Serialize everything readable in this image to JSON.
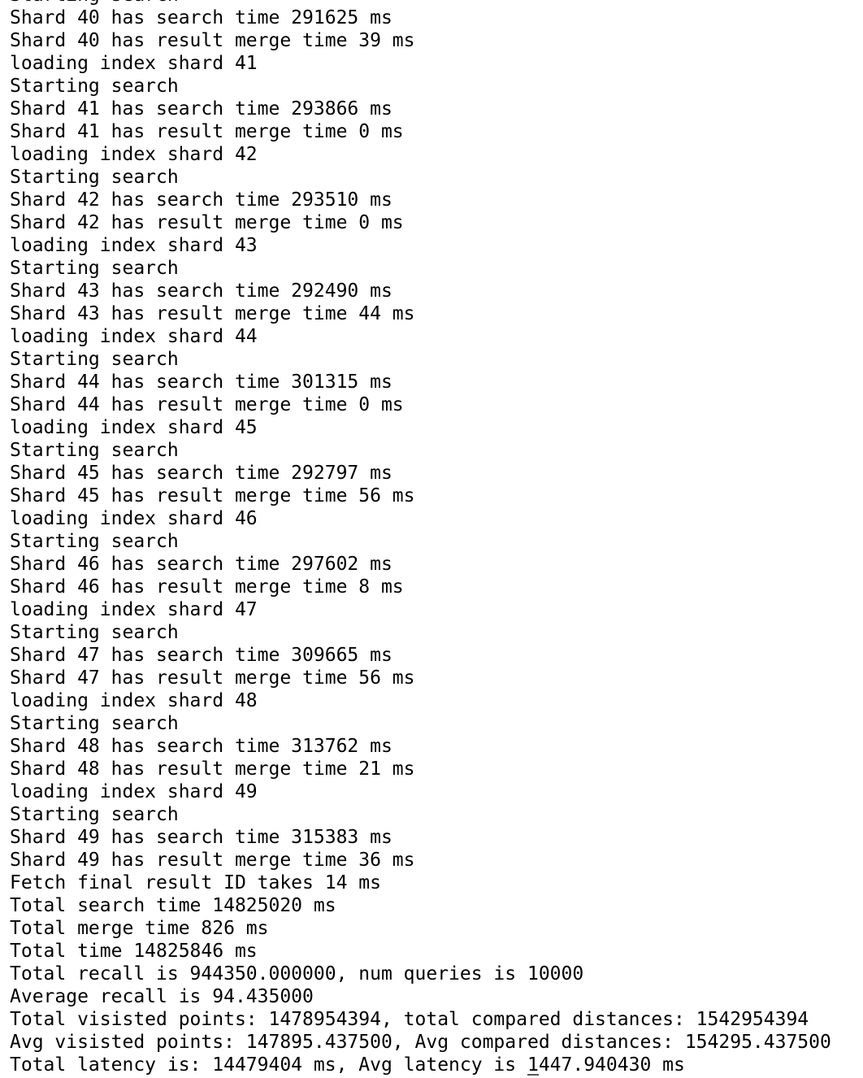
{
  "lines": [
    "Starting search",
    "Shard 40 has search time 291625 ms",
    "Shard 40 has result merge time 39 ms",
    "loading index shard 41",
    "Starting search",
    "Shard 41 has search time 293866 ms",
    "Shard 41 has result merge time 0 ms",
    "loading index shard 42",
    "Starting search",
    "Shard 42 has search time 293510 ms",
    "Shard 42 has result merge time 0 ms",
    "loading index shard 43",
    "Starting search",
    "Shard 43 has search time 292490 ms",
    "Shard 43 has result merge time 44 ms",
    "loading index shard 44",
    "Starting search",
    "Shard 44 has search time 301315 ms",
    "Shard 44 has result merge time 0 ms",
    "loading index shard 45",
    "Starting search",
    "Shard 45 has search time 292797 ms",
    "Shard 45 has result merge time 56 ms",
    "loading index shard 46",
    "Starting search",
    "Shard 46 has search time 297602 ms",
    "Shard 46 has result merge time 8 ms",
    "loading index shard 47",
    "Starting search",
    "Shard 47 has search time 309665 ms",
    "Shard 47 has result merge time 56 ms",
    "loading index shard 48",
    "Starting search",
    "Shard 48 has search time 313762 ms",
    "Shard 48 has result merge time 21 ms",
    "loading index shard 49",
    "Starting search",
    "Shard 49 has search time 315383 ms",
    "Shard 49 has result merge time 36 ms",
    "Fetch final result ID takes 14 ms",
    "Total search time 14825020 ms",
    "Total merge time 826 ms",
    "Total time 14825846 ms",
    "Total recall is 944350.000000, num queries is 10000",
    "Average recall is 94.435000",
    "Total visisted points: 1478954394, total compared distances: 1542954394",
    "Avg visisted points: 147895.437500, Avg compared distances: 154295.437500",
    "Total latency is: 14479404 ms, Avg latency is 1447.940430 ms"
  ]
}
